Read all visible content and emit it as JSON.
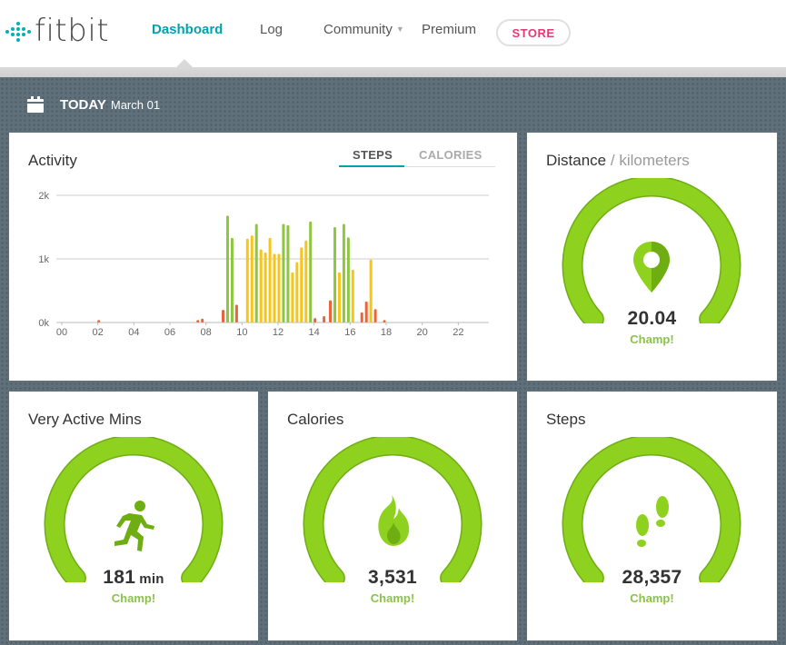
{
  "header": {
    "logo_text": "fitbit",
    "nav": [
      {
        "label": "Dashboard",
        "active": true
      },
      {
        "label": "Log",
        "active": false
      },
      {
        "label": "Community",
        "active": false
      },
      {
        "label": "Premium",
        "active": false
      }
    ],
    "store_label": "STORE",
    "colors": {
      "accent": "#00a3ad",
      "store": "#e33a72"
    }
  },
  "date_bar": {
    "label": "TODAY",
    "date": "March 01",
    "icon": "calendar-icon"
  },
  "activity": {
    "title": "Activity",
    "tabs": [
      {
        "label": "STEPS",
        "active": true
      },
      {
        "label": "CALORIES",
        "active": false
      }
    ]
  },
  "chart_data": {
    "type": "bar",
    "xlabel": "",
    "ylabel": "",
    "ylim": [
      0,
      2000
    ],
    "y_ticks": [
      "0k",
      "1k",
      "2k"
    ],
    "x_ticks": [
      "00",
      "02",
      "04",
      "06",
      "08",
      "10",
      "12",
      "14",
      "16",
      "18",
      "20",
      "22"
    ],
    "x_range": [
      0,
      24
    ],
    "grid": true,
    "colors": {
      "low": "#e8653a",
      "mid": "#f5c518",
      "high": "#8dc63f"
    },
    "bars": [
      {
        "x": 2.0,
        "y": 40,
        "level": "low"
      },
      {
        "x": 7.5,
        "y": 40,
        "level": "low"
      },
      {
        "x": 7.75,
        "y": 60,
        "level": "low"
      },
      {
        "x": 8.9,
        "y": 200,
        "level": "low"
      },
      {
        "x": 9.15,
        "y": 1680,
        "level": "high"
      },
      {
        "x": 9.4,
        "y": 1330,
        "level": "high"
      },
      {
        "x": 9.65,
        "y": 280,
        "level": "low"
      },
      {
        "x": 10.25,
        "y": 1320,
        "level": "mid"
      },
      {
        "x": 10.5,
        "y": 1370,
        "level": "mid"
      },
      {
        "x": 10.75,
        "y": 1550,
        "level": "high"
      },
      {
        "x": 11.0,
        "y": 1150,
        "level": "mid"
      },
      {
        "x": 11.25,
        "y": 1100,
        "level": "mid"
      },
      {
        "x": 11.5,
        "y": 1330,
        "level": "mid"
      },
      {
        "x": 11.75,
        "y": 1080,
        "level": "mid"
      },
      {
        "x": 12.0,
        "y": 1080,
        "level": "mid"
      },
      {
        "x": 12.25,
        "y": 1550,
        "level": "high"
      },
      {
        "x": 12.5,
        "y": 1530,
        "level": "high"
      },
      {
        "x": 12.75,
        "y": 790,
        "level": "mid"
      },
      {
        "x": 13.0,
        "y": 950,
        "level": "mid"
      },
      {
        "x": 13.25,
        "y": 1180,
        "level": "mid"
      },
      {
        "x": 13.5,
        "y": 1290,
        "level": "mid"
      },
      {
        "x": 13.75,
        "y": 1590,
        "level": "high"
      },
      {
        "x": 14.0,
        "y": 70,
        "level": "low"
      },
      {
        "x": 14.5,
        "y": 100,
        "level": "low"
      },
      {
        "x": 14.85,
        "y": 350,
        "level": "low"
      },
      {
        "x": 15.1,
        "y": 1500,
        "level": "high"
      },
      {
        "x": 15.35,
        "y": 790,
        "level": "mid"
      },
      {
        "x": 15.6,
        "y": 1550,
        "level": "high"
      },
      {
        "x": 15.85,
        "y": 1340,
        "level": "high"
      },
      {
        "x": 16.1,
        "y": 830,
        "level": "mid"
      },
      {
        "x": 16.6,
        "y": 160,
        "level": "low"
      },
      {
        "x": 16.85,
        "y": 330,
        "level": "low"
      },
      {
        "x": 17.1,
        "y": 990,
        "level": "mid"
      },
      {
        "x": 17.35,
        "y": 210,
        "level": "low"
      },
      {
        "x": 17.85,
        "y": 40,
        "level": "low"
      }
    ]
  },
  "distance": {
    "title": "Distance",
    "unit": "/ kilometers",
    "value": "20.04",
    "status": "Champ!",
    "progress": 1.0,
    "icon": "map-pin-icon"
  },
  "active_mins": {
    "title": "Very Active Mins",
    "value": "181",
    "unit": "min",
    "status": "Champ!",
    "progress": 1.0,
    "icon": "running-person-icon"
  },
  "calories": {
    "title": "Calories",
    "value": "3,531",
    "status": "Champ!",
    "progress": 1.0,
    "icon": "flame-icon"
  },
  "steps": {
    "title": "Steps",
    "value": "28,357",
    "status": "Champ!",
    "progress": 1.0,
    "icon": "footprints-icon"
  },
  "colors": {
    "gauge": "#8ed11f",
    "gauge_dark": "#6fae12",
    "champ": "#8bc34a",
    "board": "#5f707b"
  }
}
